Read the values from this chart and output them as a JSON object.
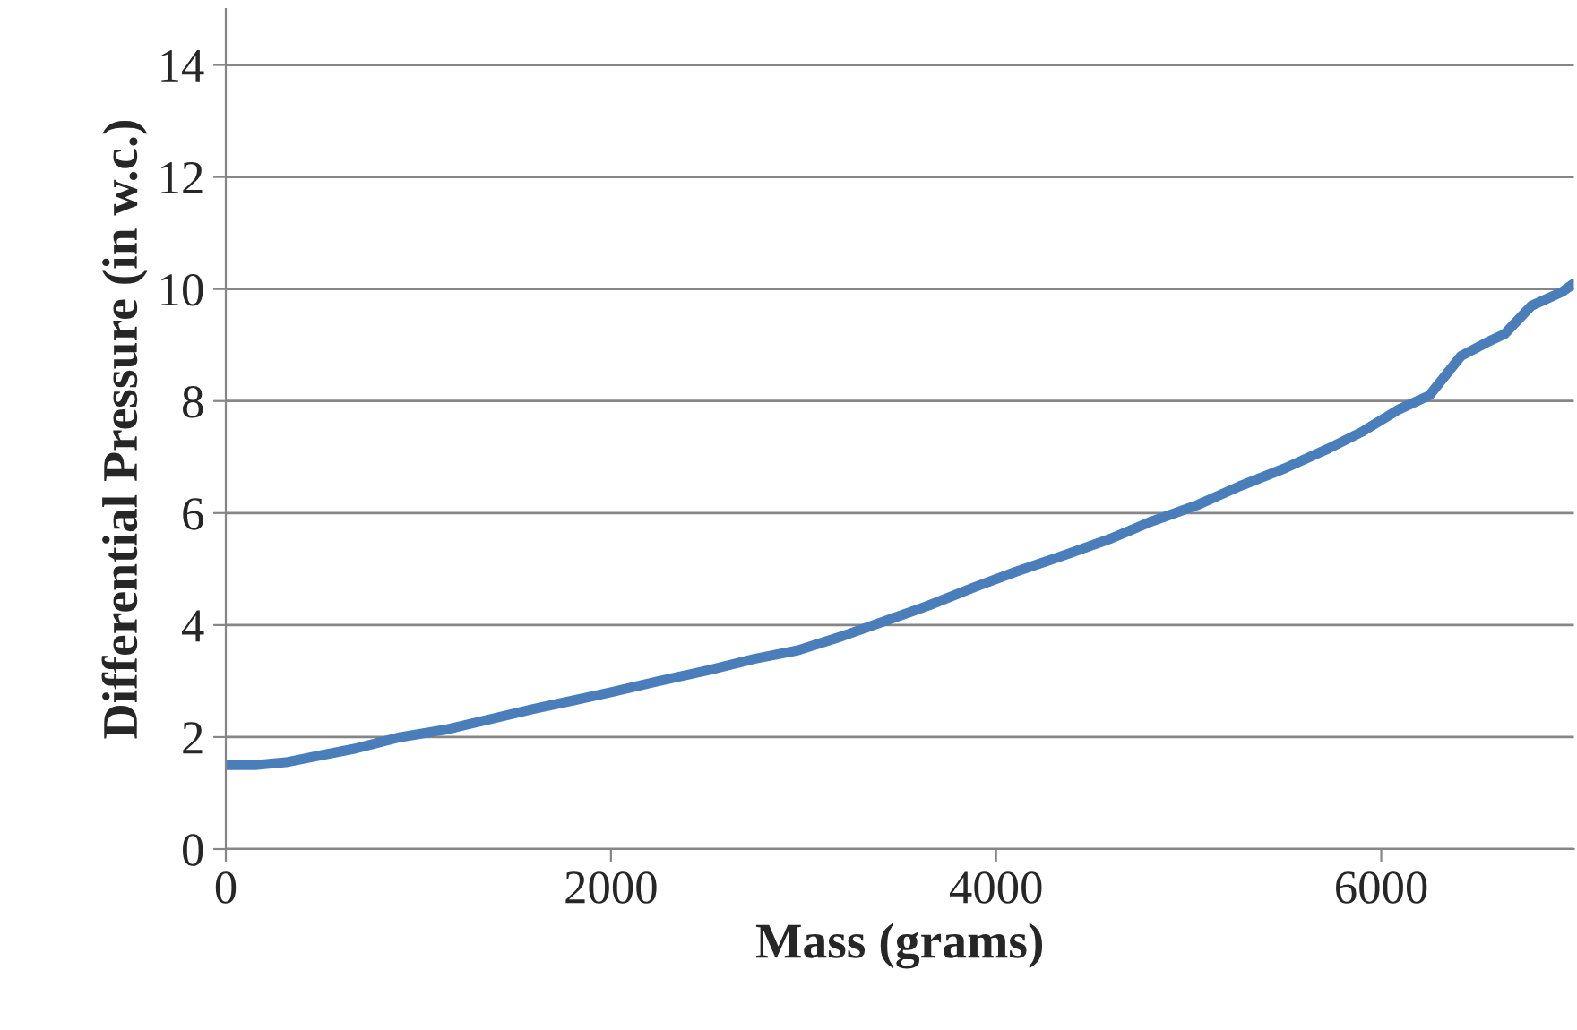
{
  "chart_data": {
    "type": "line",
    "xlabel": "Mass (grams)",
    "ylabel": "Differential Pressure (in w.c.)",
    "xlim": [
      0,
      7000
    ],
    "xticks": [
      0,
      2000,
      4000,
      6000
    ],
    "ylim": [
      0,
      15
    ],
    "yticks": [
      0,
      2,
      4,
      6,
      8,
      10,
      12,
      14
    ],
    "grid": "y",
    "marker": "none",
    "line_style": "solid",
    "series": [
      {
        "color": "#4a7ebb",
        "x": [
          0,
          150,
          312,
          500,
          679,
          908,
          1138,
          1350,
          1596,
          1800,
          2000,
          2250,
          2514,
          2750,
          2972,
          3200,
          3431,
          3650,
          3890,
          4100,
          4349,
          4600,
          4807,
          5050,
          5266,
          5500,
          5725,
          5900,
          6092,
          6250,
          6413,
          6550,
          6642,
          6780,
          6940,
          7000
        ],
        "values": [
          1.5,
          1.5,
          1.55,
          1.68,
          1.8,
          2.0,
          2.13,
          2.3,
          2.5,
          2.65,
          2.8,
          3.0,
          3.2,
          3.4,
          3.55,
          3.8,
          4.08,
          4.35,
          4.68,
          4.95,
          5.24,
          5.55,
          5.85,
          6.15,
          6.48,
          6.8,
          7.15,
          7.45,
          7.85,
          8.1,
          8.8,
          9.05,
          9.2,
          9.7,
          9.95,
          10.1
        ]
      }
    ]
  }
}
